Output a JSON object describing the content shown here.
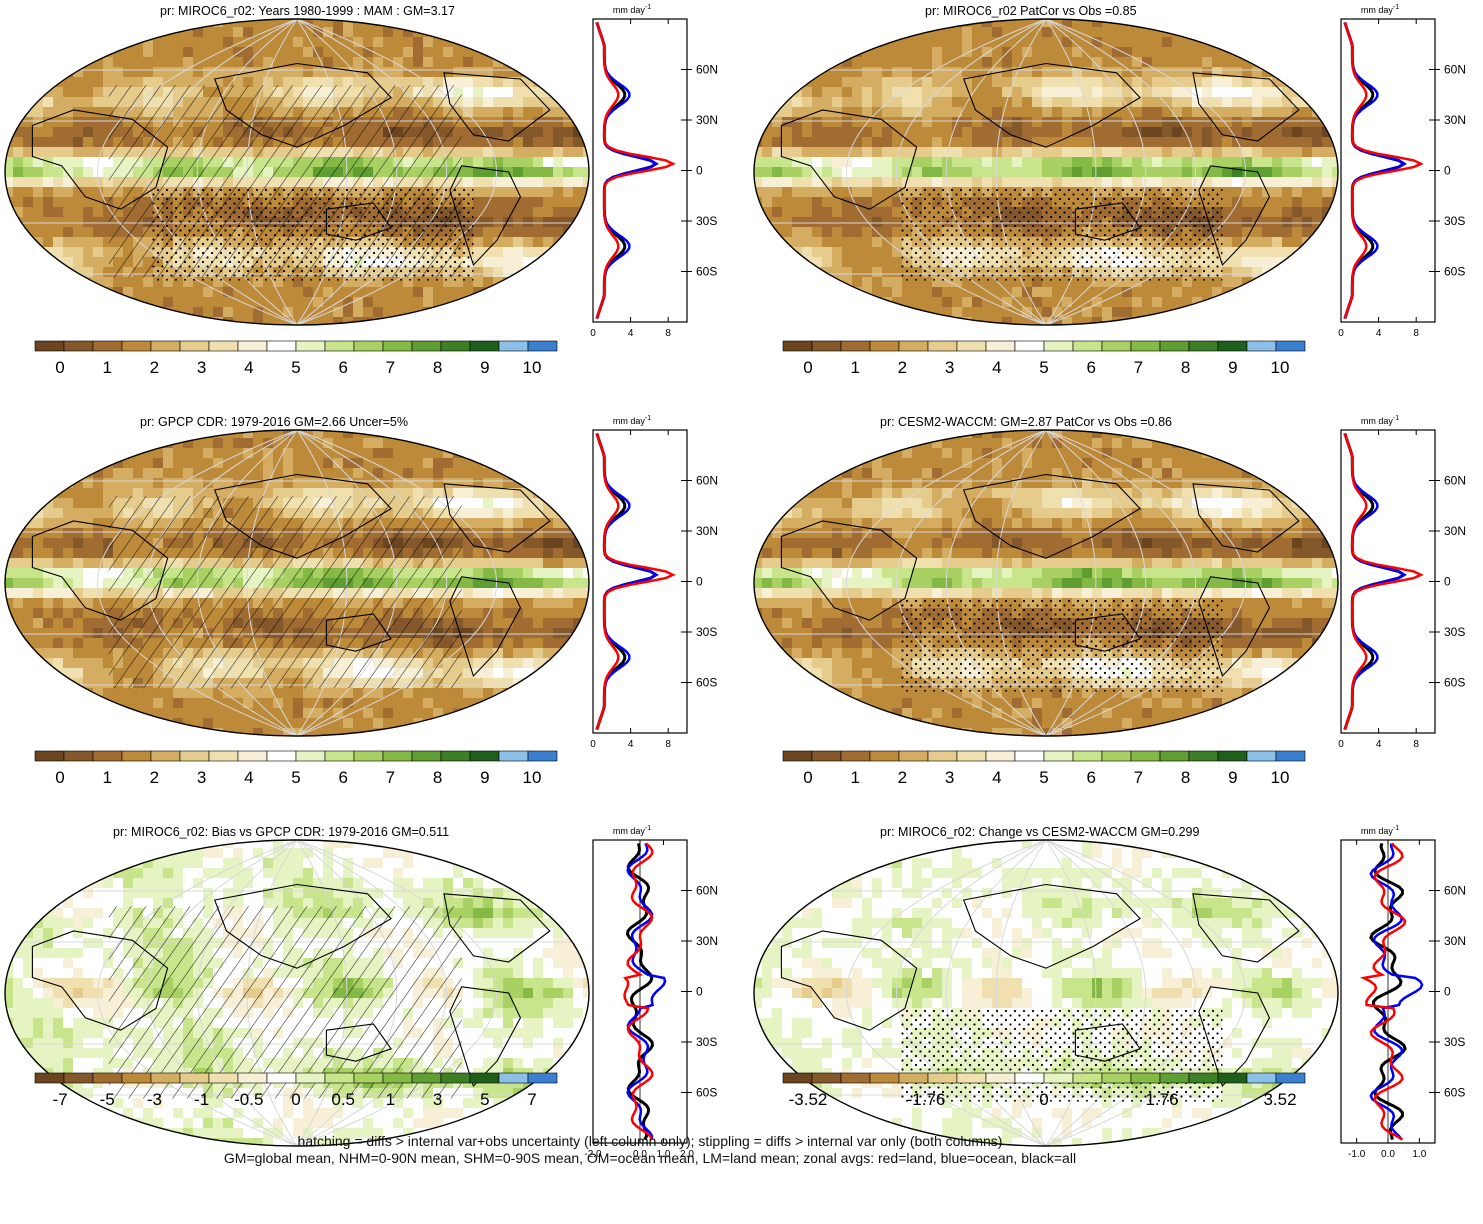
{
  "palette": [
    "#6b4420",
    "#85582b",
    "#a06c32",
    "#bd8a3a",
    "#d5ad62",
    "#e5cb8c",
    "#f0e0b0",
    "#f7efd6",
    "#ffffff",
    "#e6f3c2",
    "#c8e58c",
    "#a8d062",
    "#83b944",
    "#5f9e33",
    "#3c7f26",
    "#1f5f1c",
    "#8cc0e8",
    "#3a7fd0"
  ],
  "zonal_colors": {
    "land": "#ff0000",
    "ocean": "#0000ff",
    "all": "#000000"
  },
  "zonal_units": "mm day",
  "zonal_units_sup": "-1",
  "lat_labels": [
    "60N",
    "30N",
    "0",
    "30S",
    "60S"
  ],
  "panels": [
    {
      "id": "p1",
      "title": "pr: MIROC6_r02: Years 1980-1999 : MAM : GM=3.17",
      "overlay": "hatch-stipple",
      "cbar_labels": [
        "0",
        "1",
        "2",
        "3",
        "4",
        "5",
        "6",
        "7",
        "8",
        "9",
        "10"
      ],
      "zonal_ticks": [
        "0",
        "4",
        "8"
      ],
      "zonal_range": [
        0,
        10
      ]
    },
    {
      "id": "p2",
      "title": "pr: MIROC6_r02 PatCor vs Obs =0.85",
      "overlay": "stipple",
      "cbar_labels": [
        "0",
        "1",
        "2",
        "3",
        "4",
        "5",
        "6",
        "7",
        "8",
        "9",
        "10"
      ],
      "zonal_ticks": [
        "0",
        "4",
        "8"
      ],
      "zonal_range": [
        0,
        10
      ]
    },
    {
      "id": "p3",
      "title": "pr: GPCP CDR: 1979-2016 GM=2.66 Uncer=5%",
      "overlay": "hatch",
      "cbar_labels": [
        "0",
        "1",
        "2",
        "3",
        "4",
        "5",
        "6",
        "7",
        "8",
        "9",
        "10"
      ],
      "zonal_ticks": [
        "0",
        "4",
        "8"
      ],
      "zonal_range": [
        0,
        10
      ]
    },
    {
      "id": "p4",
      "title": "pr: CESM2-WACCM: GM=2.87 PatCor vs Obs =0.86",
      "overlay": "stipple",
      "cbar_labels": [
        "0",
        "1",
        "2",
        "3",
        "4",
        "5",
        "6",
        "7",
        "8",
        "9",
        "10"
      ],
      "zonal_ticks": [
        "0",
        "4",
        "8"
      ],
      "zonal_range": [
        0,
        10
      ]
    },
    {
      "id": "p5",
      "title": "pr: MIROC6_r02: Bias vs GPCP CDR: 1979-2016 GM=0.511",
      "overlay": "hatch",
      "cbar_labels": [
        "-7",
        "-5",
        "-3",
        "-1",
        "-0.5",
        "0",
        "0.5",
        "1",
        "3",
        "5",
        "7"
      ],
      "zonal_ticks": [
        "-2.0",
        "0.0",
        "1.0",
        "2.0"
      ],
      "zonal_range": [
        -2,
        2
      ]
    },
    {
      "id": "p6",
      "title": "pr: MIROC6_r02: Change vs CESM2-WACCM GM=0.299",
      "overlay": "stipple",
      "cbar_labels": [
        "-3.52",
        "-1.76",
        "0",
        "1.76",
        "3.52"
      ],
      "zonal_ticks": [
        "-1.0",
        "0.0",
        "1.0"
      ],
      "zonal_range": [
        -1.5,
        1.5
      ]
    }
  ],
  "footer": {
    "line1": "hatching = diffs > internal var+obs uncertainty (left column only); stippling = diffs > internal var only (both columns)",
    "line2": "GM=global mean, NHM=0-90N mean, SHM=0-90S mean, OM=ocean mean, LM=land mean; zonal avgs: red=land, blue=ocean, black=all"
  }
}
